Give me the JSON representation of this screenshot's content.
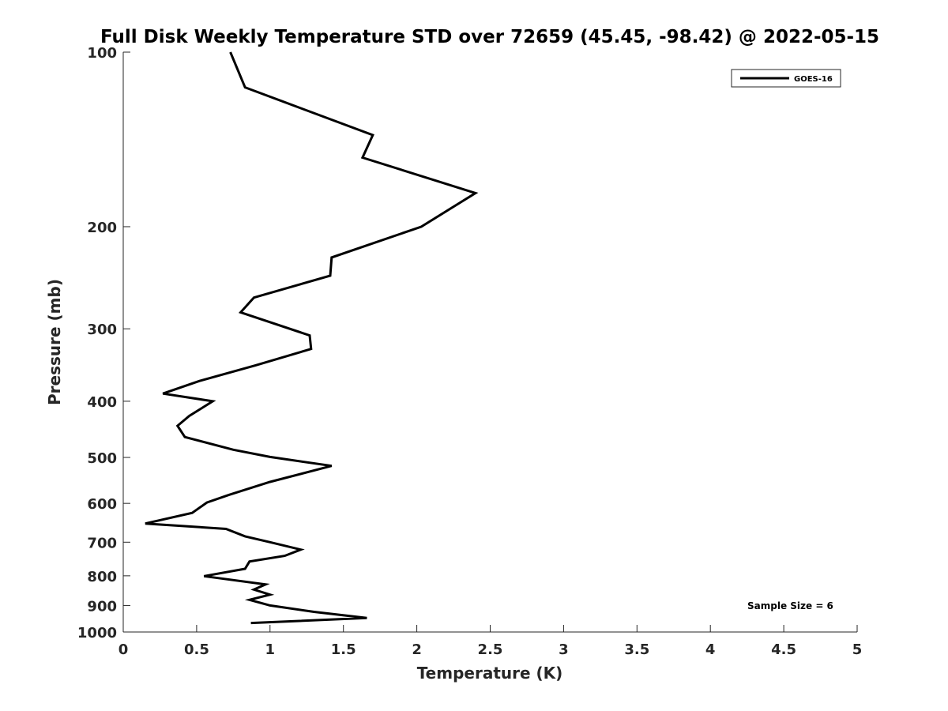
{
  "chart_data": {
    "type": "line",
    "title": "Full Disk Weekly Temperature STD over 72659 (45.45, -98.42) @ 2022-05-15",
    "xlabel": "Temperature (K)",
    "ylabel": "Pressure (mb)",
    "xlim": [
      0,
      5
    ],
    "ylim": [
      1000,
      100
    ],
    "yscale": "log",
    "y_reversed": true,
    "xticks": [
      "0",
      "0.5",
      "1",
      "1.5",
      "2",
      "2.5",
      "3",
      "3.5",
      "4",
      "4.5",
      "5"
    ],
    "yticks": [
      "100",
      "200",
      "300",
      "400",
      "500",
      "600",
      "700",
      "800",
      "900",
      "1000"
    ],
    "grid": false,
    "legend": {
      "position": "top-right",
      "entries": [
        "GOES-16"
      ]
    },
    "annotation": "Sample Size = 6",
    "series": [
      {
        "name": "GOES-16",
        "x": [
          0.73,
          0.83,
          1.7,
          1.63,
          2.4,
          2.03,
          1.42,
          1.41,
          0.89,
          0.8,
          1.27,
          1.28,
          0.9,
          0.52,
          0.27,
          0.61,
          0.45,
          0.37,
          0.42,
          0.75,
          1.0,
          1.42,
          1.0,
          0.72,
          0.57,
          0.47,
          0.15,
          0.7,
          0.83,
          1.0,
          1.21,
          1.1,
          0.86,
          0.83,
          0.55,
          0.97,
          0.89,
          1.0,
          0.86,
          1.0,
          1.3,
          1.66,
          0.87
        ],
        "y": [
          100,
          115,
          139,
          152,
          175,
          200,
          226,
          243,
          265,
          281,
          308,
          325,
          347,
          369,
          388,
          400,
          424,
          441,
          461,
          485,
          499,
          517,
          551,
          580,
          598,
          623,
          650,
          664,
          684,
          700,
          721,
          739,
          756,
          778,
          801,
          828,
          845,
          862,
          880,
          900,
          923,
          946,
          965
        ]
      }
    ]
  }
}
